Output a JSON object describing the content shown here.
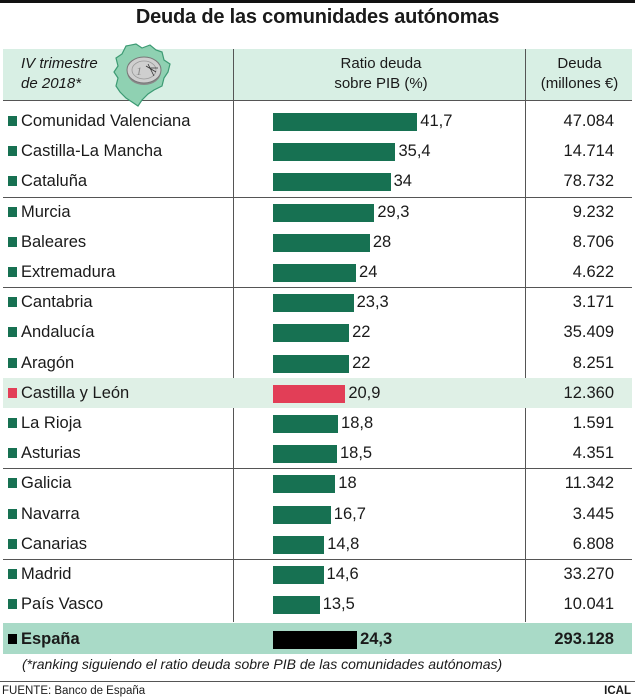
{
  "title": "Deuda de las comunidades autónomas",
  "header": {
    "period_line1": "IV trimestre",
    "period_line2": "de 2018*",
    "ratio_line1": "Ratio deuda",
    "ratio_line2": "sobre PIB (%)",
    "debt_line1": "Deuda",
    "debt_line2": "(millones €)",
    "icon": "euro-coin-on-map-icon"
  },
  "colors": {
    "bar": "#177152",
    "highlight_bar": "#e23e57",
    "total_bar": "#000000",
    "header_bg": "#d8efe4",
    "highlight_bg": "#dff0e6",
    "total_bg": "#a9dac7"
  },
  "chart_data": {
    "type": "bar",
    "orientation": "horizontal",
    "title": "Deuda de las comunidades autónomas",
    "xlabel": "Ratio deuda sobre PIB (%)",
    "categories": [
      "Comunidad Valenciana",
      "Castilla-La Mancha",
      "Cataluña",
      "Murcia",
      "Baleares",
      "Extremadura",
      "Cantabria",
      "Andalucía",
      "Aragón",
      "Castilla y León",
      "La Rioja",
      "Asturias",
      "Galicia",
      "Navarra",
      "Canarias",
      "Madrid",
      "País Vasco",
      "España"
    ],
    "rows": [
      {
        "name": "Comunidad Valenciana",
        "ratio": 41.7,
        "ratio_label": "41,7",
        "debt": "47.084",
        "style": "normal"
      },
      {
        "name": "Castilla-La Mancha",
        "ratio": 35.4,
        "ratio_label": "35,4",
        "debt": "14.714",
        "style": "normal"
      },
      {
        "name": "Cataluña",
        "ratio": 34,
        "ratio_label": "34",
        "debt": "78.732",
        "style": "normal"
      },
      {
        "name": "Murcia",
        "ratio": 29.3,
        "ratio_label": "29,3",
        "debt": "9.232",
        "style": "normal"
      },
      {
        "name": "Baleares",
        "ratio": 28,
        "ratio_label": "28",
        "debt": "8.706",
        "style": "normal"
      },
      {
        "name": "Extremadura",
        "ratio": 24,
        "ratio_label": "24",
        "debt": "4.622",
        "style": "normal"
      },
      {
        "name": "Cantabria",
        "ratio": 23.3,
        "ratio_label": "23,3",
        "debt": "3.171",
        "style": "normal"
      },
      {
        "name": "Andalucía",
        "ratio": 22,
        "ratio_label": "22",
        "debt": "35.409",
        "style": "normal"
      },
      {
        "name": "Aragón",
        "ratio": 22,
        "ratio_label": "22",
        "debt": "8.251",
        "style": "normal"
      },
      {
        "name": "Castilla y León",
        "ratio": 20.9,
        "ratio_label": "20,9",
        "debt": "12.360",
        "style": "highlight"
      },
      {
        "name": "La Rioja",
        "ratio": 18.8,
        "ratio_label": "18,8",
        "debt": "1.591",
        "style": "normal"
      },
      {
        "name": "Asturias",
        "ratio": 18.5,
        "ratio_label": "18,5",
        "debt": "4.351",
        "style": "normal"
      },
      {
        "name": "Galicia",
        "ratio": 18,
        "ratio_label": "18",
        "debt": "11.342",
        "style": "normal"
      },
      {
        "name": "Navarra",
        "ratio": 16.7,
        "ratio_label": "16,7",
        "debt": "3.445",
        "style": "normal"
      },
      {
        "name": "Canarias",
        "ratio": 14.8,
        "ratio_label": "14,8",
        "debt": "6.808",
        "style": "normal"
      },
      {
        "name": "Madrid",
        "ratio": 14.6,
        "ratio_label": "14,6",
        "debt": "33.270",
        "style": "normal"
      },
      {
        "name": "País Vasco",
        "ratio": 13.5,
        "ratio_label": "13,5",
        "debt": "10.041",
        "style": "normal"
      },
      {
        "name": "España",
        "ratio": 24.3,
        "ratio_label": "24,3",
        "debt": "293.128",
        "style": "total"
      }
    ],
    "group_breaks_after": [
      2,
      5,
      8,
      11,
      14
    ],
    "xlim": [
      0,
      45
    ],
    "grid": false,
    "legend": "none"
  },
  "footer": {
    "note": "(*ranking siguiendo el ratio deuda sobre PIB de las comunidades autónomas)",
    "source": "FUENTE: Banco de España",
    "brand": "ICAL"
  }
}
